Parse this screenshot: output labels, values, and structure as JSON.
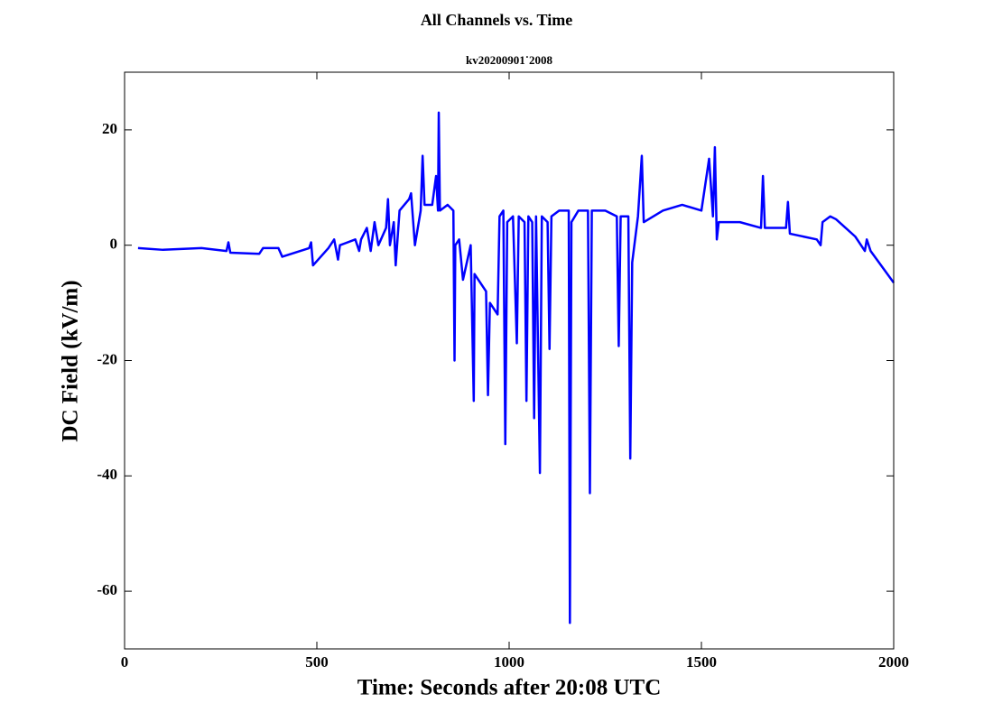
{
  "chart_data": {
    "type": "line",
    "title": "All Channels vs. Time",
    "subtitle": "kv20200901˙2008",
    "x_label": "Time: Seconds after 20:08 UTC",
    "y_label": "DC Field (kV/m)",
    "color": "#0000ff",
    "xlim": [
      0,
      2000
    ],
    "xticks": [
      0,
      500,
      1000,
      1500,
      2000
    ],
    "ylim": [
      -70,
      30
    ],
    "yticks": [
      -60,
      -40,
      -20,
      0,
      20
    ],
    "x": [
      35,
      100,
      200,
      265,
      270,
      275,
      350,
      360,
      400,
      410,
      480,
      485,
      490,
      530,
      545,
      555,
      560,
      600,
      610,
      615,
      630,
      640,
      650,
      660,
      680,
      685,
      690,
      700,
      705,
      715,
      740,
      745,
      755,
      770,
      775,
      780,
      800,
      810,
      815,
      817,
      820,
      840,
      855,
      858,
      860,
      870,
      880,
      900,
      908,
      910,
      940,
      945,
      950,
      970,
      975,
      985,
      990,
      995,
      1010,
      1020,
      1025,
      1040,
      1045,
      1050,
      1060,
      1065,
      1070,
      1080,
      1085,
      1100,
      1105,
      1110,
      1130,
      1155,
      1158,
      1162,
      1180,
      1205,
      1210,
      1215,
      1250,
      1280,
      1285,
      1290,
      1310,
      1315,
      1320,
      1335,
      1345,
      1350,
      1400,
      1450,
      1500,
      1520,
      1530,
      1535,
      1540,
      1545,
      1600,
      1655,
      1660,
      1665,
      1720,
      1725,
      1730,
      1800,
      1810,
      1815,
      1835,
      1850,
      1900,
      1925,
      1930,
      1940,
      2000
    ],
    "values": [
      -0.5,
      -0.8,
      -0.5,
      -1,
      0.5,
      -1.3,
      -1.5,
      -0.5,
      -0.5,
      -2,
      -0.5,
      0.5,
      -3.5,
      -0.5,
      1,
      -2.5,
      0,
      1,
      -1,
      1,
      3,
      -1,
      4,
      0,
      3,
      8,
      0,
      4,
      -3.5,
      6,
      8,
      9,
      0,
      6,
      15.5,
      7,
      7,
      12,
      6,
      23,
      6,
      7,
      6,
      -20,
      0,
      1,
      -6,
      0,
      -27,
      -5,
      -8,
      -26,
      -10,
      -12,
      5,
      6,
      -34.5,
      4,
      5,
      -17,
      5,
      4,
      -27,
      5,
      4,
      -30,
      5,
      -39.5,
      5,
      4,
      -18,
      5,
      6,
      6,
      -65.5,
      4,
      6,
      6,
      -43,
      6,
      6,
      5,
      -17.5,
      5,
      5,
      -37,
      -3,
      5,
      15.5,
      4,
      6,
      7,
      6,
      15,
      5,
      17,
      1,
      4,
      4,
      3,
      12,
      3,
      3,
      7.5,
      2,
      1,
      0,
      4,
      5,
      4.5,
      1.5,
      -1,
      1,
      -1,
      -6.5
    ]
  }
}
